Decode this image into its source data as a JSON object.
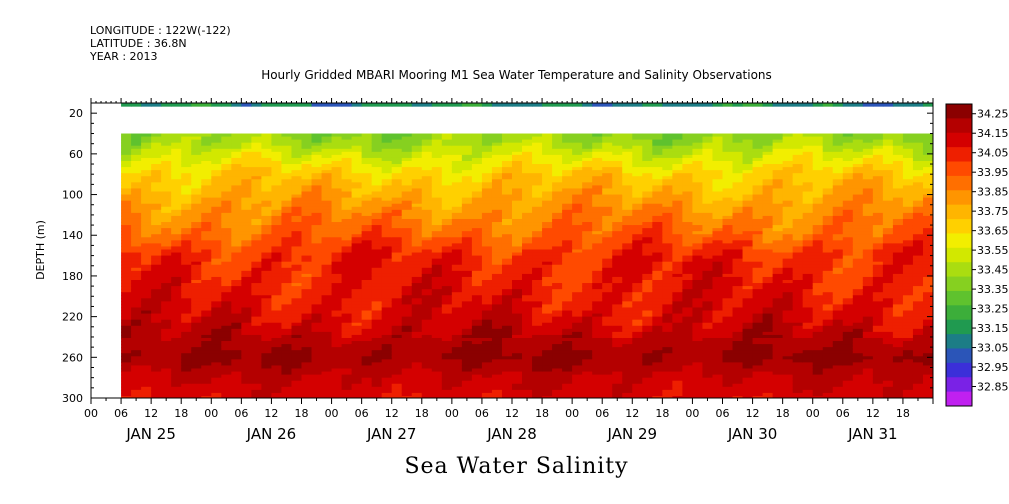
{
  "header": {
    "longitude": "LONGITUDE : 122W(-122)",
    "latitude": "LATITUDE : 36.8N",
    "year": "YEAR : 2013"
  },
  "chart_data": {
    "type": "heatmap",
    "title": "Hourly Gridded MBARI Mooring M1 Sea Water Temperature and Salinity Observations",
    "caption": "Sea Water Salinity",
    "ylabel": "DEPTH (m)",
    "ylim": [
      300,
      10
    ],
    "y_ticks": [
      20,
      60,
      100,
      140,
      180,
      220,
      260,
      300
    ],
    "x_hour_ticks": [
      "00",
      "06",
      "12",
      "18",
      "00",
      "06",
      "12",
      "18",
      "00",
      "06",
      "12",
      "18",
      "00",
      "06",
      "12",
      "18",
      "00",
      "06",
      "12",
      "18",
      "00",
      "06",
      "12",
      "18",
      "00",
      "06",
      "12",
      "18"
    ],
    "x_day_labels": [
      "JAN 25",
      "JAN 26",
      "JAN 27",
      "JAN 28",
      "JAN 29",
      "JAN 30",
      "JAN 31"
    ],
    "data_start_hour": 6,
    "data_end_hour": 168,
    "missing_depth_band": [
      14,
      40
    ],
    "colorbar": {
      "labels": [
        "34.25",
        "34.15",
        "34.05",
        "33.95",
        "33.85",
        "33.75",
        "33.65",
        "33.55",
        "33.45",
        "33.35",
        "33.25",
        "33.15",
        "33.05",
        "32.95",
        "32.85"
      ],
      "range": [
        32.85,
        34.3
      ],
      "colors": [
        "#8b0000",
        "#b40000",
        "#d40000",
        "#ee1f00",
        "#ff4a00",
        "#ff6f00",
        "#ff9500",
        "#ffb500",
        "#ffd000",
        "#f2ee00",
        "#d2e800",
        "#aadd10",
        "#86d020",
        "#5fc22e",
        "#3cae3a",
        "#209a50",
        "#1c7d86",
        "#2b55b8",
        "#3b2fd9",
        "#7a22e6",
        "#c020f0"
      ]
    },
    "profile": {
      "depths": [
        10,
        14,
        40,
        50,
        60,
        80,
        100,
        120,
        140,
        160,
        180,
        200,
        220,
        240,
        260,
        280,
        300
      ],
      "salinity": [
        33.1,
        33.35,
        33.45,
        33.5,
        33.58,
        33.72,
        33.8,
        33.88,
        33.95,
        34.05,
        34.07,
        34.09,
        34.12,
        34.18,
        34.24,
        34.16,
        34.12
      ]
    }
  }
}
